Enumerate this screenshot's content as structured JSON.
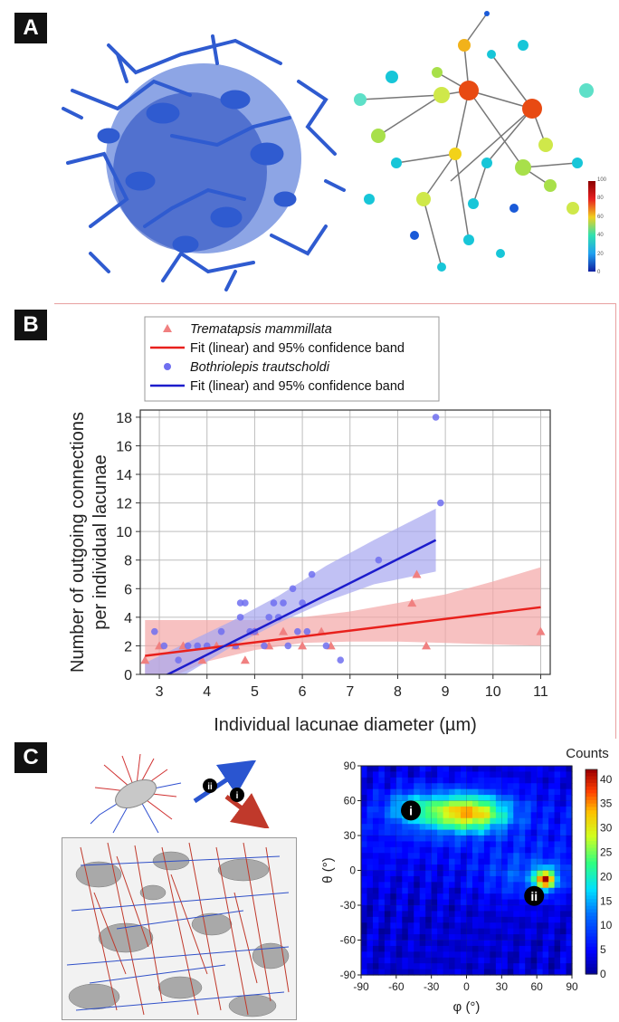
{
  "panels": {
    "a": "A",
    "b": "B",
    "c": "C"
  },
  "panel_a": {
    "colorbar_ticks": [
      "100",
      "80",
      "60",
      "40",
      "20",
      "0"
    ],
    "colors": {
      "network": "#2f5bd0",
      "node_low": "#17c6d8",
      "node_mid": "#a8e04a",
      "node_high": "#e84a12"
    }
  },
  "chart_data": [
    {
      "type": "scatter",
      "xlabel": "Individual lacunae diameter (µm)",
      "ylabel_lines": [
        "Number of outgoing connections",
        "per individual lacunae"
      ],
      "xlim": [
        2.6,
        11.2
      ],
      "ylim": [
        0,
        18.5
      ],
      "xticks": [
        "3",
        "4",
        "5",
        "6",
        "7",
        "8",
        "9",
        "10",
        "11"
      ],
      "yticks": [
        "0",
        "2",
        "4",
        "6",
        "8",
        "10",
        "12",
        "14",
        "16",
        "18"
      ],
      "grid": true,
      "legend_position": "top",
      "legend": [
        {
          "label": "Trematapsis mammillata",
          "marker": "triangle",
          "italic": true
        },
        {
          "label": "Fit (linear) and 95% confidence band",
          "marker": "line-red",
          "italic": false
        },
        {
          "label": "Bothriolepis trautscholdi",
          "marker": "circle",
          "italic": true
        },
        {
          "label": "Fit (linear) and 95% confidence band",
          "marker": "line-blue",
          "italic": false
        }
      ],
      "series": [
        {
          "name": "Trematapsis mammillata",
          "kind": "points",
          "color": "#f08080",
          "x": [
            2.7,
            3.0,
            3.5,
            3.9,
            4.2,
            4.6,
            4.8,
            5.0,
            5.3,
            5.6,
            6.0,
            6.4,
            6.6,
            8.3,
            8.4,
            8.6,
            11.0
          ],
          "y": [
            1,
            2,
            2,
            1,
            2,
            2,
            1,
            3,
            2,
            3,
            2,
            3,
            2,
            5,
            7,
            2,
            3
          ]
        },
        {
          "name": "Fit (linear) and 95% confidence band",
          "kind": "fit",
          "color": "#e8201c",
          "band_color": "#f4a6a6",
          "x": [
            2.7,
            11.0
          ],
          "y": [
            1.3,
            4.7
          ],
          "band_x": [
            2.7,
            4.0,
            5.0,
            6.0,
            7.0,
            8.0,
            9.0,
            10.0,
            11.0
          ],
          "band_lower": [
            -1.0,
            0.9,
            1.7,
            2.2,
            2.3,
            2.3,
            2.2,
            2.1,
            2.0
          ],
          "band_upper": [
            3.8,
            3.8,
            3.8,
            4.0,
            4.4,
            5.0,
            5.6,
            6.5,
            7.5
          ]
        },
        {
          "name": "Bothriolepis trautscholdi",
          "kind": "points",
          "color": "#6f6ff0",
          "x": [
            2.9,
            3.1,
            3.4,
            3.6,
            3.8,
            4.0,
            4.3,
            4.6,
            4.7,
            4.7,
            4.8,
            4.9,
            5.0,
            5.2,
            5.3,
            5.4,
            5.5,
            5.6,
            5.7,
            5.8,
            5.9,
            6.0,
            6.1,
            6.2,
            6.5,
            6.8,
            7.6,
            8.8,
            8.9
          ],
          "y": [
            3,
            2,
            1,
            2,
            2,
            2,
            3,
            2,
            4,
            5,
            5,
            3,
            3,
            2,
            4,
            5,
            4,
            5,
            2,
            6,
            3,
            5,
            3,
            7,
            2,
            1,
            8,
            18,
            12
          ]
        },
        {
          "name": "Fit (linear) and 95% confidence band",
          "kind": "fit",
          "color": "#1c1ccc",
          "band_color": "#a7a7f0",
          "x": [
            2.7,
            8.8
          ],
          "y": [
            -0.8,
            9.4
          ],
          "band_x": [
            2.7,
            3.5,
            4.5,
            5.5,
            6.5,
            7.5,
            8.8
          ],
          "band_lower": [
            -2.4,
            -0.1,
            1.9,
            3.6,
            5.1,
            6.3,
            7.2
          ],
          "band_upper": [
            0.8,
            2.1,
            3.7,
            5.5,
            7.6,
            9.4,
            11.6
          ]
        }
      ]
    },
    {
      "type": "heatmap",
      "title": "Counts",
      "xlabel": "φ (°)",
      "ylabel": "θ (°)",
      "xticks": [
        "-90",
        "-60",
        "-30",
        "0",
        "30",
        "60",
        "90"
      ],
      "yticks": [
        "90",
        "60",
        "30",
        "0",
        "-30",
        "-60",
        "-90"
      ],
      "xlim": [
        -90,
        90
      ],
      "ylim": [
        -90,
        90
      ],
      "colorbar_ticks": [
        "40",
        "35",
        "30",
        "25",
        "20",
        "15",
        "10",
        "5",
        "0"
      ],
      "colorbar_range": [
        0,
        42
      ],
      "hotspots": [
        {
          "label": "i",
          "phi": -5,
          "theta": 50,
          "peak": 32
        },
        {
          "label": "ii",
          "phi": 67,
          "theta": -8,
          "peak": 40
        }
      ]
    }
  ],
  "panel_c": {
    "arrow_labels": [
      "ii",
      "i"
    ],
    "colors": {
      "arrow_i": "#c0392b",
      "arrow_ii": "#2a55d0"
    }
  }
}
